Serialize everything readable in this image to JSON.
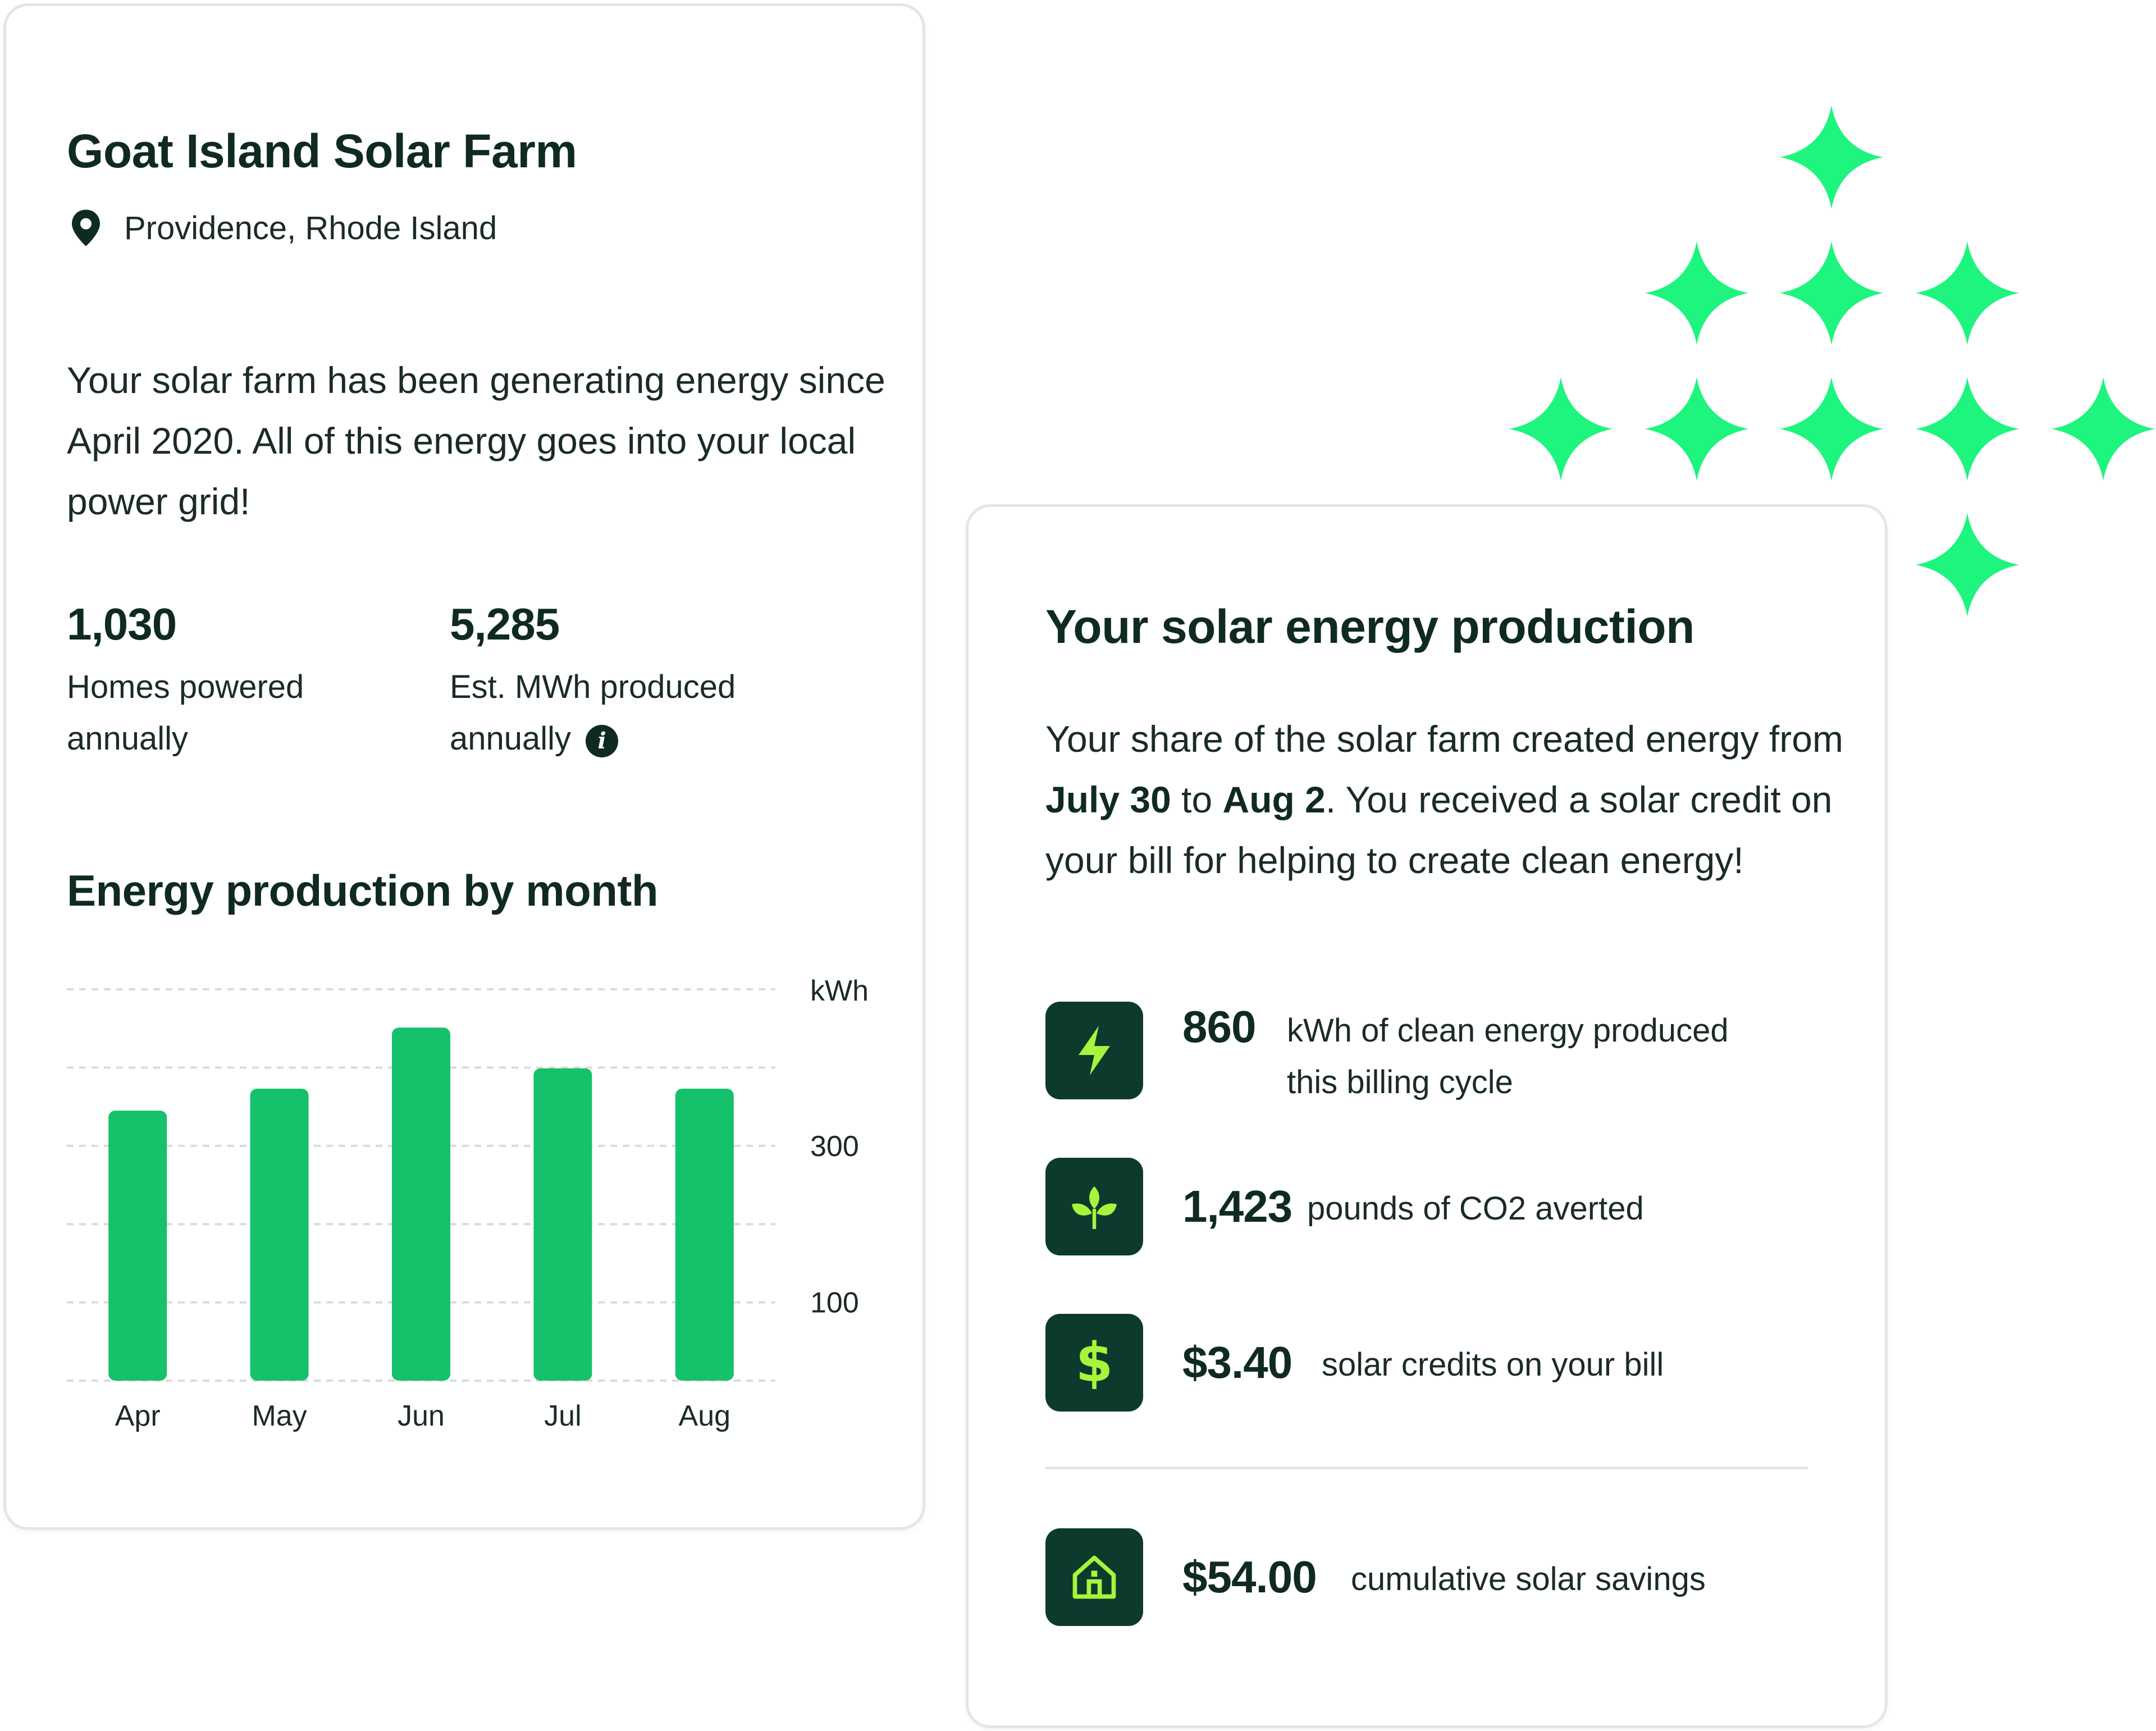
{
  "farm": {
    "title": "Goat Island Solar Farm",
    "location": "Providence, Rhode Island",
    "description": "Your solar farm has been generating energy since April 2020. All of this energy goes into your local power grid!",
    "stats": [
      {
        "value": "1,030",
        "label_line1": "Homes powered",
        "label_line2": "annually"
      },
      {
        "value": "5,285",
        "label_line1": "Est. MWh produced",
        "label_line2": "annually"
      }
    ],
    "info_icon": "info-icon",
    "chart_title": "Energy production by month"
  },
  "chart_data": {
    "type": "bar",
    "categories": [
      "Apr",
      "May",
      "Jun",
      "Jul",
      "Aug"
    ],
    "values": [
      345,
      373,
      451,
      399,
      373
    ],
    "ylabel": "kWh",
    "y_ticks": [
      "300",
      "100"
    ],
    "ylim": [
      0,
      500
    ],
    "grid": true,
    "bar_color": "#15c16a"
  },
  "production": {
    "title": "Your solar energy production",
    "desc_part1": "Your share of the solar farm created energy from ",
    "desc_bold1": "July 30",
    "desc_part2": " to ",
    "desc_bold2": "Aug 2",
    "desc_part3": ". You received a solar credit on your bill for helping to create clean energy!",
    "metrics": [
      {
        "icon": "lightning-icon",
        "value": "860",
        "text_line1": "kWh of clean energy produced",
        "text_line2": "this billing cycle"
      },
      {
        "icon": "leaf-icon",
        "value": "1,423",
        "text_line1": "pounds of CO2 averted"
      },
      {
        "icon": "dollar-icon",
        "value": "$3.40",
        "text_line1": "solar credits on your bill"
      }
    ],
    "savings": {
      "icon": "house-icon",
      "value": "$54.00",
      "text": "cumulative solar savings"
    }
  },
  "colors": {
    "accent_green": "#15c16a",
    "sparkle_green": "#1ef57e",
    "tile_dark": "#0c3b2e",
    "icon_lime": "#a6f53c",
    "text_dark": "#0f2a22"
  }
}
